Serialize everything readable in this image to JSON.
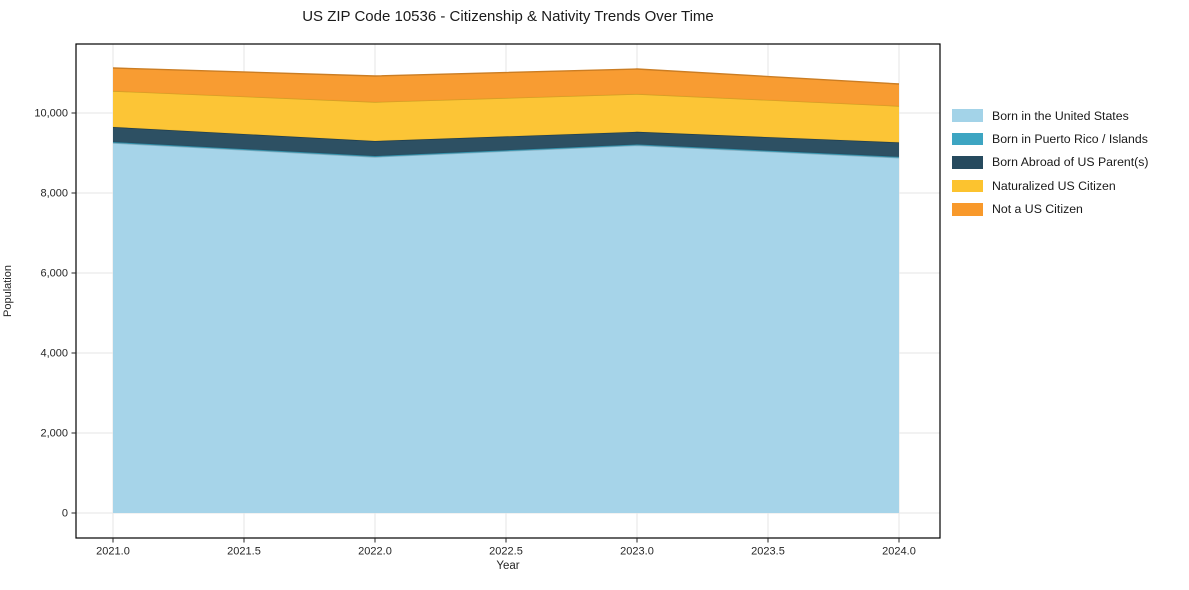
{
  "figure": {
    "title": "US ZIP Code 10536 - Citizenship & Nativity Trends Over Time",
    "xlabel": "Year",
    "ylabel": "Population"
  },
  "chart_data": {
    "type": "area",
    "stacked": true,
    "title": "US ZIP Code 10536 - Citizenship & Nativity Trends Over Time",
    "xlabel": "Year",
    "ylabel": "Population",
    "x": [
      2021,
      2022,
      2023,
      2024
    ],
    "x_ticks": [
      2021.0,
      2021.5,
      2022.0,
      2022.5,
      2023.0,
      2023.5,
      2024.0
    ],
    "x_tick_labels": [
      "2021.0",
      "2021.5",
      "2022.0",
      "2022.5",
      "2023.0",
      "2023.5",
      "2024.0"
    ],
    "y_ticks": [
      0,
      2000,
      4000,
      6000,
      8000,
      10000
    ],
    "y_tick_labels": [
      "0",
      "2,000",
      "4,000",
      "6,000",
      "8,000",
      "10,000"
    ],
    "xlim": [
      2020.86,
      2024.14
    ],
    "ylim": [
      -560,
      11725
    ],
    "grid": true,
    "grid_color": "#e6e6e6",
    "spine_color": "#000000",
    "legend_position": "right-outside",
    "series": [
      {
        "name": "Born in the United States",
        "color": "#a3d3e8",
        "values": [
          9250,
          8900,
          9190,
          8880
        ]
      },
      {
        "name": "Born in Puerto Rico / Islands",
        "color": "#3da5c2",
        "values": [
          25,
          25,
          25,
          25
        ]
      },
      {
        "name": "Born Abroad of US Parent(s)",
        "color": "#264a5e",
        "values": [
          375,
          375,
          315,
          360
        ]
      },
      {
        "name": "Naturalized US Citizen",
        "color": "#fcc32f",
        "values": [
          900,
          975,
          945,
          910
        ]
      },
      {
        "name": "Not a US Citizen",
        "color": "#f8992b",
        "values": [
          575,
          650,
          625,
          550
        ]
      }
    ],
    "stacked_totals": [
      11125,
      10925,
      11100,
      10725
    ]
  }
}
